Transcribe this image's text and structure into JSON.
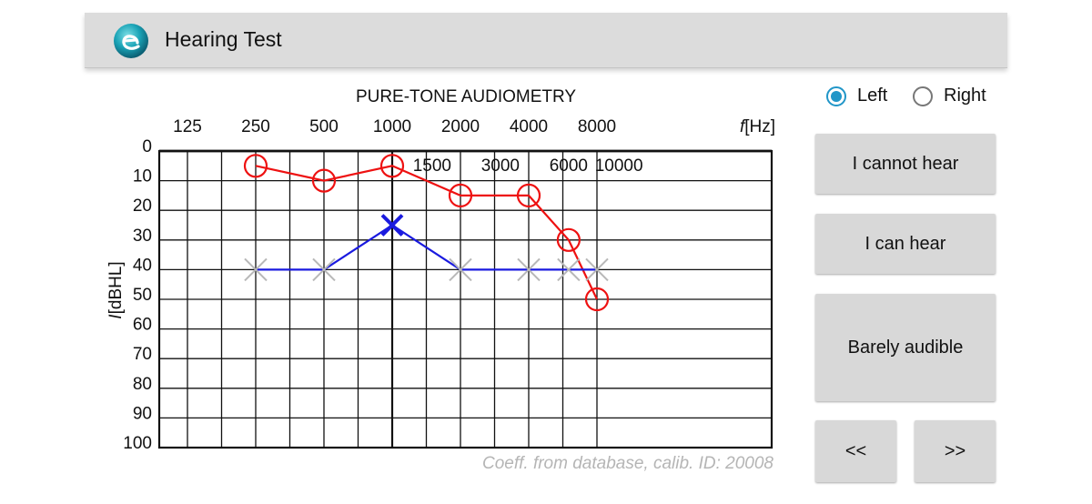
{
  "app": {
    "title": "Hearing Test"
  },
  "ear_selector": {
    "options": [
      {
        "label": "Left",
        "selected": true
      },
      {
        "label": "Right",
        "selected": false
      }
    ],
    "accent_color": "#2196c8"
  },
  "buttons": {
    "cannot_hear": "I cannot hear",
    "can_hear": "I can hear",
    "barely_audible": "Barely audible",
    "prev": "<<",
    "next": ">>"
  },
  "chart_data": {
    "type": "line",
    "title": "PURE-TONE AUDIOMETRY",
    "xlabel_symbol": "f",
    "xlabel_unit": "[Hz]",
    "ylabel_symbol": "I",
    "ylabel_unit": "[dBHL]",
    "x_scale": "log",
    "ylim": [
      0,
      100
    ],
    "y_inverted": true,
    "top_ticks": [
      125,
      250,
      500,
      1000,
      2000,
      4000,
      8000
    ],
    "inner_ticks": [
      1500,
      3000,
      6000,
      10000
    ],
    "y_ticks": [
      0,
      10,
      20,
      30,
      40,
      50,
      60,
      70,
      80,
      90,
      100
    ],
    "series": [
      {
        "ear": "right",
        "marker": "circle",
        "color": "#ee1111",
        "points": [
          [
            250,
            5
          ],
          [
            500,
            10
          ],
          [
            1000,
            5
          ],
          [
            2000,
            15
          ],
          [
            4000,
            15
          ],
          [
            6000,
            30
          ],
          [
            8000,
            50
          ]
        ]
      },
      {
        "ear": "left",
        "marker": "x",
        "color": "#1a1adf",
        "pending_color": "#b8b8b8",
        "current_frequency": 1000,
        "points": [
          [
            250,
            40
          ],
          [
            500,
            40
          ],
          [
            1000,
            25
          ],
          [
            2000,
            40
          ],
          [
            4000,
            40
          ],
          [
            6000,
            40
          ],
          [
            8000,
            40
          ]
        ]
      }
    ],
    "footnote": "Coeff. from database, calib. ID: 20008"
  }
}
